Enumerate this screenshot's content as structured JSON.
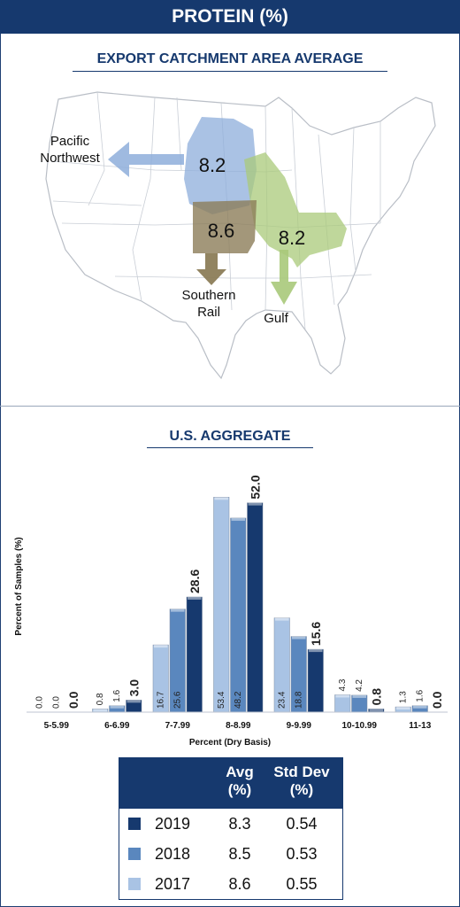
{
  "header": {
    "title": "PROTEIN (%)"
  },
  "map": {
    "title": "EXPORT CATCHMENT AREA AVERAGE",
    "regions": [
      {
        "name": "Pacific Northwest",
        "label_lines": [
          "Pacific",
          "Northwest"
        ],
        "value": "8.2",
        "color": "#8eaedb"
      },
      {
        "name": "Southern Rail",
        "label_lines": [
          "Southern",
          "Rail"
        ],
        "value": "8.6",
        "color": "#8c7d59"
      },
      {
        "name": "Gulf",
        "label_lines": [
          "Gulf"
        ],
        "value": "8.2",
        "color": "#a9c97a"
      }
    ]
  },
  "chart_data": {
    "type": "bar",
    "title": "U.S. AGGREGATE",
    "xlabel": "Percent (Dry Basis)",
    "ylabel": "Percent of Samples (%)",
    "categories": [
      "5-5.99",
      "6-6.99",
      "7-7.99",
      "8-8.99",
      "9-9.99",
      "10-10.99",
      "11-13"
    ],
    "ylim": [
      0,
      55
    ],
    "series": [
      {
        "name": "2017",
        "color": "#a9c3e4",
        "values": [
          0.0,
          0.8,
          16.7,
          53.4,
          23.4,
          4.3,
          1.3
        ],
        "labels": [
          "0.0",
          "0.8",
          "16.7",
          "53.4",
          "23.4",
          "4.3",
          "1.3"
        ]
      },
      {
        "name": "2018",
        "color": "#5a87be",
        "values": [
          0.0,
          1.6,
          25.6,
          48.2,
          18.8,
          4.2,
          1.6
        ],
        "labels": [
          "0.0",
          "1.6",
          "25.6",
          "48.2",
          "18.8",
          "4.2",
          "1.6"
        ]
      },
      {
        "name": "2019",
        "color": "#16396e",
        "values": [
          0.0,
          3.0,
          28.6,
          52.0,
          15.6,
          0.8,
          0.0
        ],
        "labels": [
          "0.0",
          "3.0",
          "28.6",
          "52.0",
          "15.6",
          "0.8",
          "0.0"
        ]
      }
    ]
  },
  "table": {
    "headers": {
      "avg_line1": "Avg",
      "avg_line2": "(%)",
      "sd_line1": "Std Dev",
      "sd_line2": "(%)"
    },
    "rows": [
      {
        "year": "2019",
        "avg": "8.3",
        "sd": "0.54",
        "color": "#16396e"
      },
      {
        "year": "2018",
        "avg": "8.5",
        "sd": "0.53",
        "color": "#5a87be"
      },
      {
        "year": "2017",
        "avg": "8.6",
        "sd": "0.55",
        "color": "#a9c3e4"
      }
    ]
  }
}
